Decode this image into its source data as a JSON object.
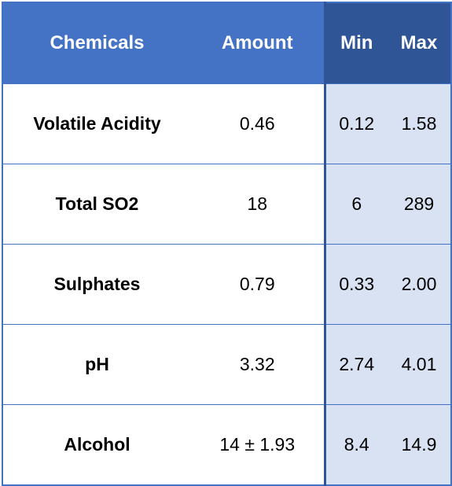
{
  "table": {
    "headers": [
      "Chemicals",
      "Amount",
      "Min",
      "Max"
    ],
    "rows": [
      [
        "Volatile Acidity",
        "0.46",
        "0.12",
        "1.58"
      ],
      [
        "Total SO2",
        "18",
        "6",
        "289"
      ],
      [
        "Sulphates",
        "0.79",
        "0.33",
        "2.00"
      ],
      [
        "pH",
        "3.32",
        "2.74",
        "4.01"
      ],
      [
        "Alcohol",
        "14 ± 1.93",
        "8.4",
        "14.9"
      ]
    ]
  },
  "colors": {
    "header_blue": "#4472c4",
    "header_dark_blue": "#2f5597",
    "range_fill": "#d9e2f3"
  }
}
